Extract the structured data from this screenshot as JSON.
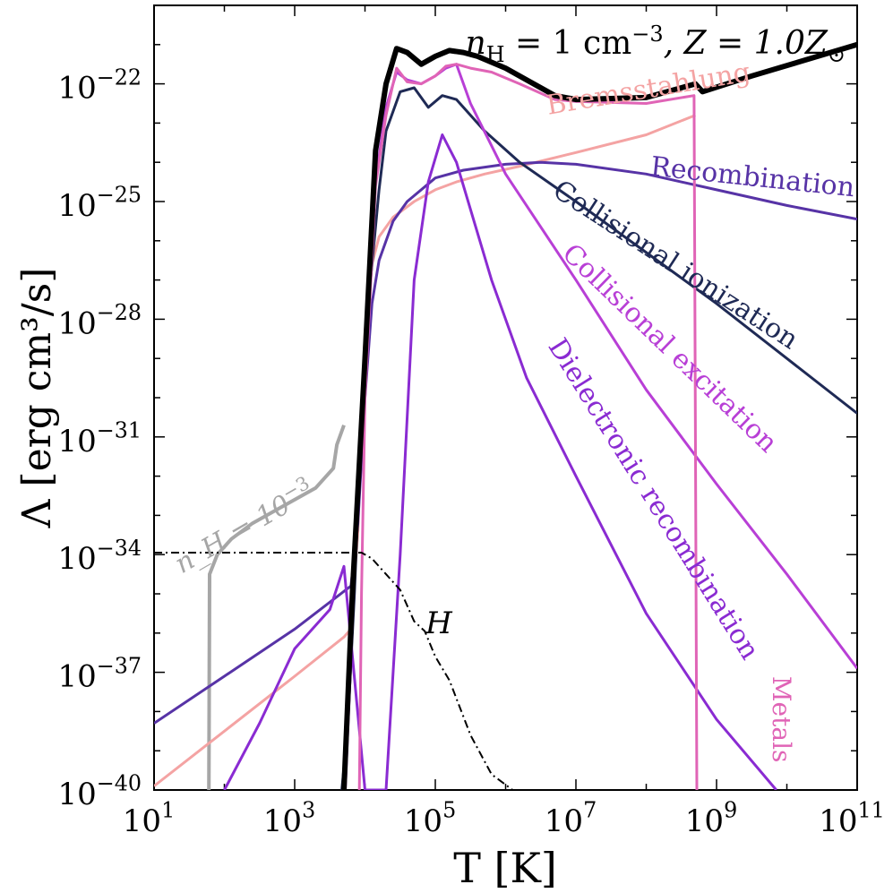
{
  "chart_data": {
    "type": "line",
    "title": "n_H = 1 cm^-3, Z = 1.0 Z_sun",
    "title_parts": {
      "a": "n",
      "a_sub": "H",
      "b": " = 1 cm",
      "b_sup": "−3",
      "c": ", Z = 1.0Z",
      "c_sub": "⊙"
    },
    "xlabel": "T [K]",
    "ylabel": "Λ [erg cm³/s]",
    "x_scale": "log",
    "y_scale": "log",
    "xlim_log10": [
      1,
      11
    ],
    "ylim_log10": [
      -40,
      -20
    ],
    "x_ticks_log10": [
      1,
      3,
      5,
      7,
      9,
      11
    ],
    "x_tick_labels": [
      "10^1",
      "10^3",
      "10^5",
      "10^7",
      "10^9",
      "10^11"
    ],
    "y_ticks_log10": [
      -40,
      -37,
      -34,
      -31,
      -28,
      -25,
      -22
    ],
    "y_tick_labels": [
      "10^-40",
      "10^-37",
      "10^-34",
      "10^-31",
      "10^-28",
      "10^-25",
      "10^-22"
    ],
    "series": [
      {
        "name": "Bremsstahlung",
        "color": "#f4a3a3",
        "style": "solid",
        "label_pos_log10": [
          8.05,
          -22.35
        ],
        "label_angle": -9.5,
        "points_log10": [
          [
            1,
            -39.9
          ],
          [
            2,
            -38.5
          ],
          [
            3,
            -37.1
          ],
          [
            3.7,
            -36.1
          ],
          [
            3.8,
            -35.9
          ],
          [
            3.9,
            -33.4
          ],
          [
            4.0,
            -28.3
          ],
          [
            4.1,
            -26.6
          ],
          [
            4.2,
            -25.9
          ],
          [
            4.4,
            -25.4
          ],
          [
            4.7,
            -25.0
          ],
          [
            5.0,
            -24.7
          ],
          [
            5.3,
            -24.5
          ],
          [
            5.7,
            -24.3
          ],
          [
            6.2,
            -24.1
          ],
          [
            7.0,
            -23.75
          ],
          [
            8.0,
            -23.3
          ],
          [
            8.7,
            -22.8
          ]
        ]
      },
      {
        "name": "Recombination",
        "color": "#5733a6",
        "style": "solid",
        "label_pos_log10": [
          9.5,
          -24.6
        ],
        "label_angle": 6,
        "points_log10": [
          [
            1,
            -38.3
          ],
          [
            2,
            -37.1
          ],
          [
            3,
            -35.9
          ],
          [
            3.8,
            -34.8
          ],
          [
            3.9,
            -33.2
          ],
          [
            4.0,
            -30.0
          ],
          [
            4.1,
            -27.6
          ],
          [
            4.2,
            -26.5
          ],
          [
            4.4,
            -25.5
          ],
          [
            4.6,
            -25.0
          ],
          [
            5.0,
            -24.4
          ],
          [
            5.4,
            -24.2
          ],
          [
            6.0,
            -24.05
          ],
          [
            6.5,
            -24.0
          ],
          [
            7.0,
            -24.05
          ],
          [
            8.0,
            -24.3
          ],
          [
            9.0,
            -24.7
          ],
          [
            10.0,
            -25.1
          ],
          [
            11.0,
            -25.45
          ]
        ]
      },
      {
        "name": "Collisional ionization",
        "color": "#1f2a55",
        "style": "solid",
        "label_pos_log10": [
          8.35,
          -26.8
        ],
        "label_angle": 33,
        "points_log10": [
          [
            3.67,
            -40
          ],
          [
            3.75,
            -38.5
          ],
          [
            3.85,
            -35.0
          ],
          [
            4.0,
            -28.5
          ],
          [
            4.2,
            -24.7
          ],
          [
            4.3,
            -23.2
          ],
          [
            4.5,
            -22.2
          ],
          [
            4.7,
            -22.1
          ],
          [
            4.9,
            -22.6
          ],
          [
            5.1,
            -22.3
          ],
          [
            5.3,
            -22.4
          ],
          [
            5.7,
            -23.2
          ],
          [
            6.2,
            -24.0
          ],
          [
            7.0,
            -25.0
          ],
          [
            8.0,
            -26.3
          ],
          [
            9.0,
            -27.6
          ],
          [
            10.0,
            -29.0
          ],
          [
            11.0,
            -30.4
          ]
        ]
      },
      {
        "name": "Collisional excitation",
        "color": "#b83fd6",
        "style": "solid",
        "label_pos_log10": [
          8.25,
          -28.9
        ],
        "label_angle": 44,
        "points_log10": [
          [
            3.72,
            -40
          ],
          [
            3.85,
            -34.5
          ],
          [
            4.0,
            -29.0
          ],
          [
            4.15,
            -24.5
          ],
          [
            4.3,
            -22.6
          ],
          [
            4.45,
            -21.7
          ],
          [
            4.6,
            -21.9
          ],
          [
            4.8,
            -22.0
          ],
          [
            5.0,
            -21.8
          ],
          [
            5.15,
            -21.6
          ],
          [
            5.3,
            -21.5
          ],
          [
            5.5,
            -22.5
          ],
          [
            6.0,
            -24.3
          ],
          [
            7.0,
            -27.0
          ],
          [
            8.0,
            -29.8
          ],
          [
            9.0,
            -32.2
          ],
          [
            10.0,
            -34.5
          ],
          [
            11.0,
            -36.9
          ]
        ]
      },
      {
        "name": "Dielectronic recombination",
        "color": "#8a2bd2",
        "style": "solid",
        "label_pos_log10": [
          8.0,
          -32.7
        ],
        "label_angle": 58,
        "points_log10": [
          [
            2.0,
            -40
          ],
          [
            2.5,
            -38.3
          ],
          [
            3.0,
            -36.4
          ],
          [
            3.5,
            -35.4
          ],
          [
            3.7,
            -34.3
          ],
          [
            4.0,
            -40
          ],
          [
            4.3,
            -40
          ],
          [
            4.5,
            -34.0
          ],
          [
            4.7,
            -27.0
          ],
          [
            4.9,
            -24.5
          ],
          [
            5.1,
            -23.3
          ],
          [
            5.3,
            -24.0
          ],
          [
            5.8,
            -27.0
          ],
          [
            6.3,
            -29.5
          ],
          [
            7.0,
            -32.0
          ],
          [
            8.0,
            -35.5
          ],
          [
            9.0,
            -38.2
          ],
          [
            9.85,
            -40
          ]
        ]
      },
      {
        "name": "Metals",
        "color": "#e064b6",
        "style": "solid",
        "label_pos_log10": [
          9.8,
          -38.2
        ],
        "label_angle": 90,
        "points_log10": [
          [
            3.92,
            -40
          ],
          [
            3.95,
            -35.0
          ],
          [
            4.0,
            -30.0
          ],
          [
            4.15,
            -24.6
          ],
          [
            4.3,
            -22.8
          ],
          [
            4.45,
            -21.6
          ],
          [
            4.6,
            -21.95
          ],
          [
            4.8,
            -22.0
          ],
          [
            5.0,
            -21.8
          ],
          [
            5.15,
            -21.55
          ],
          [
            5.3,
            -21.5
          ],
          [
            5.5,
            -21.6
          ],
          [
            5.8,
            -21.7
          ],
          [
            6.2,
            -22.0
          ],
          [
            6.7,
            -22.4
          ],
          [
            7.0,
            -22.45
          ],
          [
            8.0,
            -22.5
          ],
          [
            8.68,
            -22.3
          ],
          [
            8.72,
            -40
          ]
        ]
      },
      {
        "name": "Total",
        "color": "#000000",
        "style": "solid-bold",
        "points_log10": [
          [
            3.7,
            -40
          ],
          [
            3.82,
            -35.0
          ],
          [
            4.0,
            -29.0
          ],
          [
            4.15,
            -23.7
          ],
          [
            4.3,
            -22.0
          ],
          [
            4.45,
            -21.1
          ],
          [
            4.6,
            -21.2
          ],
          [
            4.8,
            -21.5
          ],
          [
            5.0,
            -21.3
          ],
          [
            5.2,
            -21.15
          ],
          [
            5.4,
            -21.2
          ],
          [
            5.6,
            -21.3
          ],
          [
            6.0,
            -21.6
          ],
          [
            6.3,
            -21.9
          ],
          [
            6.7,
            -22.3
          ],
          [
            7.0,
            -22.4
          ],
          [
            8.0,
            -22.35
          ],
          [
            8.7,
            -22.0
          ],
          [
            8.8,
            -22.2
          ],
          [
            9.5,
            -21.8
          ],
          [
            11.0,
            -21.0
          ]
        ]
      },
      {
        "name": "n_H = 10^-3",
        "color": "#a6a6a6",
        "style": "solid",
        "label_pos_log10": [
          2.35,
          -33.5
        ],
        "label_angle": -30,
        "points_log10": [
          [
            1.78,
            -40
          ],
          [
            1.79,
            -34.5
          ],
          [
            1.9,
            -34.0
          ],
          [
            2.1,
            -33.6
          ],
          [
            2.4,
            -33.2
          ],
          [
            2.8,
            -32.8
          ],
          [
            3.3,
            -32.3
          ],
          [
            3.55,
            -31.8
          ],
          [
            3.6,
            -31.2
          ],
          [
            3.7,
            -30.7
          ]
        ]
      },
      {
        "name": "H",
        "color": "#000000",
        "style": "dashdot",
        "label_pos_log10": [
          5.05,
          -36.0
        ],
        "label_angle": 0,
        "points_log10": [
          [
            1,
            -33.95
          ],
          [
            3.5,
            -33.95
          ],
          [
            3.95,
            -33.95
          ],
          [
            4.1,
            -34.1
          ],
          [
            4.3,
            -34.5
          ],
          [
            4.5,
            -34.9
          ],
          [
            4.7,
            -35.7
          ],
          [
            4.85,
            -35.95
          ],
          [
            5.0,
            -36.6
          ],
          [
            5.2,
            -37.2
          ],
          [
            5.5,
            -38.6
          ],
          [
            5.8,
            -39.6
          ],
          [
            6.1,
            -40
          ]
        ]
      }
    ],
    "labels": {
      "bremsstahlung": "Bremsstahlung",
      "recombination": "Recombination",
      "collisional_ionization": "Collisional ionization",
      "collisional_excitation": "Collisional excitation",
      "dielectronic_recombination": "Dielectronic recombination",
      "metals": "Metals",
      "nh_low": "n_H = 10^-3",
      "heating": "H"
    }
  }
}
